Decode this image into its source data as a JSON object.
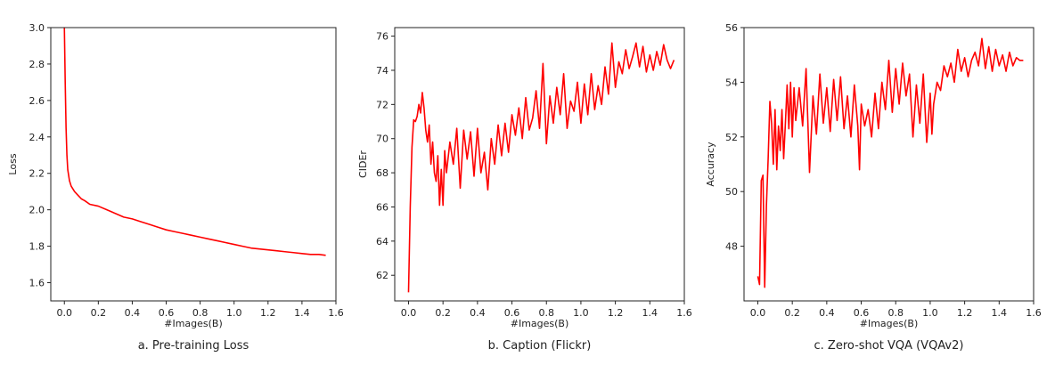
{
  "figure": {
    "line_color": "#ff0000"
  },
  "chart_data": [
    {
      "type": "line",
      "caption": "a. Pre-training Loss",
      "xlabel": "#Images(B)",
      "ylabel": "Loss",
      "xlim": [
        -0.08,
        1.6
      ],
      "ylim": [
        1.5,
        3.0
      ],
      "xticks": [
        0.0,
        0.2,
        0.4,
        0.6,
        0.8,
        1.0,
        1.2,
        1.4,
        1.6
      ],
      "xtick_labels": [
        "0.0",
        "0.2",
        "0.4",
        "0.6",
        "0.8",
        "1.0",
        "1.2",
        "1.4",
        "1.6"
      ],
      "yticks": [
        1.6,
        1.8,
        2.0,
        2.2,
        2.4,
        2.6,
        2.8,
        3.0
      ],
      "ytick_labels": [
        "1.6",
        "1.8",
        "2.0",
        "2.2",
        "2.4",
        "2.6",
        "2.8",
        "3.0"
      ],
      "grid": false,
      "series": [
        {
          "x": [
            0.0,
            0.005,
            0.01,
            0.015,
            0.02,
            0.03,
            0.04,
            0.06,
            0.08,
            0.1,
            0.12,
            0.15,
            0.2,
            0.25,
            0.3,
            0.35,
            0.4,
            0.45,
            0.5,
            0.55,
            0.6,
            0.65,
            0.7,
            0.75,
            0.8,
            0.85,
            0.9,
            0.95,
            1.0,
            1.05,
            1.1,
            1.15,
            1.2,
            1.25,
            1.3,
            1.35,
            1.4,
            1.45,
            1.5,
            1.54
          ],
          "y": [
            3.0,
            2.7,
            2.45,
            2.3,
            2.22,
            2.16,
            2.13,
            2.1,
            2.08,
            2.06,
            2.05,
            2.03,
            2.02,
            2.0,
            1.98,
            1.96,
            1.95,
            1.935,
            1.92,
            1.905,
            1.89,
            1.88,
            1.87,
            1.86,
            1.85,
            1.84,
            1.83,
            1.82,
            1.81,
            1.8,
            1.79,
            1.785,
            1.78,
            1.775,
            1.77,
            1.765,
            1.76,
            1.755,
            1.755,
            1.75
          ]
        }
      ]
    },
    {
      "type": "line",
      "caption": "b. Caption (Flickr)",
      "xlabel": "#Images(B)",
      "ylabel": "CIDEr",
      "xlim": [
        -0.08,
        1.6
      ],
      "ylim": [
        60.5,
        76.5
      ],
      "xticks": [
        0.0,
        0.2,
        0.4,
        0.6,
        0.8,
        1.0,
        1.2,
        1.4,
        1.6
      ],
      "xtick_labels": [
        "0.0",
        "0.2",
        "0.4",
        "0.6",
        "0.8",
        "1.0",
        "1.2",
        "1.4",
        "1.6"
      ],
      "yticks": [
        62,
        64,
        66,
        68,
        70,
        72,
        74,
        76
      ],
      "ytick_labels": [
        "62",
        "64",
        "66",
        "68",
        "70",
        "72",
        "74",
        "76"
      ],
      "grid": false,
      "series": [
        {
          "x": [
            0.0,
            0.01,
            0.02,
            0.03,
            0.04,
            0.05,
            0.06,
            0.07,
            0.08,
            0.09,
            0.1,
            0.11,
            0.12,
            0.13,
            0.14,
            0.15,
            0.16,
            0.17,
            0.18,
            0.19,
            0.2,
            0.21,
            0.22,
            0.24,
            0.26,
            0.28,
            0.3,
            0.32,
            0.34,
            0.36,
            0.38,
            0.4,
            0.42,
            0.44,
            0.46,
            0.48,
            0.5,
            0.52,
            0.54,
            0.56,
            0.58,
            0.6,
            0.62,
            0.64,
            0.66,
            0.68,
            0.7,
            0.72,
            0.74,
            0.76,
            0.78,
            0.8,
            0.82,
            0.84,
            0.86,
            0.88,
            0.9,
            0.92,
            0.94,
            0.96,
            0.98,
            1.0,
            1.02,
            1.04,
            1.06,
            1.08,
            1.1,
            1.12,
            1.14,
            1.16,
            1.18,
            1.2,
            1.22,
            1.24,
            1.26,
            1.28,
            1.3,
            1.32,
            1.34,
            1.36,
            1.38,
            1.4,
            1.42,
            1.44,
            1.46,
            1.48,
            1.5,
            1.52,
            1.54
          ],
          "y": [
            61.0,
            66.0,
            69.5,
            71.1,
            71.0,
            71.3,
            72.0,
            71.5,
            72.7,
            71.8,
            70.5,
            69.8,
            70.8,
            68.5,
            69.8,
            68.0,
            67.5,
            69.0,
            66.1,
            68.2,
            66.1,
            69.3,
            68.0,
            69.8,
            68.5,
            70.6,
            67.1,
            70.5,
            68.8,
            70.4,
            67.8,
            70.6,
            68.0,
            69.2,
            67.0,
            70.0,
            68.5,
            70.8,
            69.0,
            70.9,
            69.2,
            71.4,
            70.2,
            71.8,
            70.0,
            72.4,
            70.5,
            71.2,
            72.8,
            70.6,
            74.4,
            69.7,
            72.5,
            70.9,
            73.0,
            71.4,
            73.8,
            70.6,
            72.2,
            71.6,
            73.3,
            70.9,
            73.2,
            71.4,
            73.8,
            71.7,
            73.1,
            72.0,
            74.2,
            72.6,
            75.6,
            73.0,
            74.5,
            73.8,
            75.2,
            74.1,
            74.8,
            75.6,
            74.2,
            75.4,
            73.9,
            74.9,
            74.0,
            75.1,
            74.3,
            75.5,
            74.6,
            74.1,
            74.6
          ]
        }
      ]
    },
    {
      "type": "line",
      "caption": "c. Zero-shot VQA (VQAv2)",
      "xlabel": "#Images(B)",
      "ylabel": "Accuracy",
      "xlim": [
        -0.08,
        1.6
      ],
      "ylim": [
        46.0,
        56.0
      ],
      "xticks": [
        0.0,
        0.2,
        0.4,
        0.6,
        0.8,
        1.0,
        1.2,
        1.4,
        1.6
      ],
      "xtick_labels": [
        "0.0",
        "0.2",
        "0.4",
        "0.6",
        "0.8",
        "1.0",
        "1.2",
        "1.4",
        "1.6"
      ],
      "yticks": [
        48,
        50,
        52,
        54,
        56
      ],
      "ytick_labels": [
        "48",
        "50",
        "52",
        "54",
        "56"
      ],
      "grid": false,
      "series": [
        {
          "x": [
            0.0,
            0.01,
            0.02,
            0.03,
            0.04,
            0.05,
            0.06,
            0.07,
            0.08,
            0.09,
            0.1,
            0.11,
            0.12,
            0.13,
            0.14,
            0.15,
            0.16,
            0.17,
            0.18,
            0.19,
            0.2,
            0.21,
            0.22,
            0.24,
            0.26,
            0.28,
            0.3,
            0.32,
            0.34,
            0.36,
            0.38,
            0.4,
            0.42,
            0.44,
            0.46,
            0.48,
            0.5,
            0.52,
            0.54,
            0.56,
            0.58,
            0.59,
            0.6,
            0.62,
            0.64,
            0.66,
            0.68,
            0.7,
            0.72,
            0.74,
            0.76,
            0.78,
            0.8,
            0.82,
            0.84,
            0.86,
            0.88,
            0.9,
            0.92,
            0.94,
            0.96,
            0.98,
            1.0,
            1.01,
            1.02,
            1.04,
            1.06,
            1.08,
            1.1,
            1.12,
            1.14,
            1.16,
            1.18,
            1.2,
            1.22,
            1.24,
            1.26,
            1.28,
            1.3,
            1.32,
            1.34,
            1.36,
            1.38,
            1.4,
            1.42,
            1.44,
            1.46,
            1.48,
            1.5,
            1.52,
            1.54
          ],
          "y": [
            46.9,
            46.6,
            50.4,
            50.6,
            46.5,
            49.5,
            51.2,
            53.3,
            52.5,
            51.0,
            53.0,
            50.8,
            52.4,
            51.5,
            53.0,
            51.2,
            52.5,
            53.9,
            52.3,
            54.0,
            52.0,
            53.8,
            52.6,
            53.8,
            52.4,
            54.5,
            50.7,
            53.5,
            52.1,
            54.3,
            52.5,
            53.8,
            52.2,
            54.1,
            52.6,
            54.2,
            52.3,
            53.5,
            52.0,
            53.9,
            52.4,
            50.8,
            53.2,
            52.4,
            53.0,
            52.0,
            53.6,
            52.3,
            54.0,
            53.0,
            54.8,
            52.9,
            54.5,
            53.2,
            54.7,
            53.5,
            54.3,
            52.0,
            53.9,
            52.5,
            54.3,
            51.8,
            53.6,
            52.1,
            53.2,
            54.0,
            53.7,
            54.6,
            54.2,
            54.7,
            54.0,
            55.2,
            54.4,
            54.9,
            54.2,
            54.8,
            55.1,
            54.6,
            55.6,
            54.5,
            55.3,
            54.4,
            55.2,
            54.6,
            55.0,
            54.4,
            55.1,
            54.6,
            54.9,
            54.8,
            54.8
          ]
        }
      ]
    }
  ]
}
